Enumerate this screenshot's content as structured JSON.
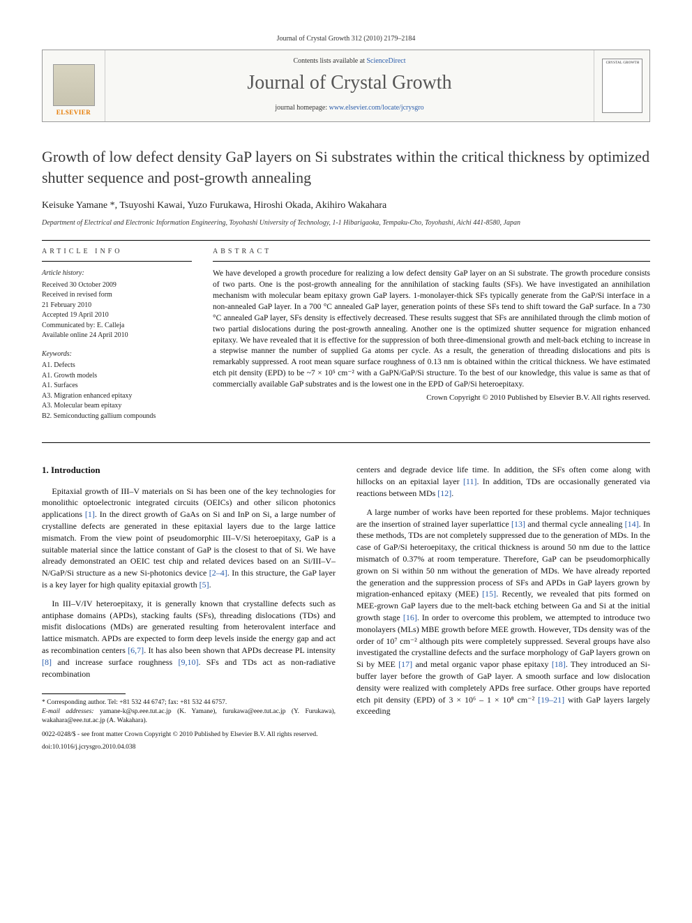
{
  "journal_header_line": "Journal of Crystal Growth 312 (2010) 2179–2184",
  "header": {
    "contents_prefix": "Contents lists available at ",
    "contents_link": "ScienceDirect",
    "journal_title": "Journal of Crystal Growth",
    "homepage_prefix": "journal homepage: ",
    "homepage_url": "www.elsevier.com/locate/jcrysgro",
    "elsevier_label": "ELSEVIER",
    "cover_label": "CRYSTAL GROWTH"
  },
  "title": "Growth of low defect density GaP layers on Si substrates within the critical thickness by optimized shutter sequence and post-growth annealing",
  "authors_html": "Keisuke Yamane *, Tsuyoshi Kawai, Yuzo Furukawa, Hiroshi Okada, Akihiro Wakahara",
  "affiliation": "Department of Electrical and Electronic Information Engineering, Toyohashi University of Technology, 1-1 Hibarigaoka, Tempaku-Cho, Toyohashi, Aichi 441-8580, Japan",
  "labels": {
    "article_info": "article info",
    "abstract": "abstract"
  },
  "history": {
    "head": "Article history:",
    "lines": [
      "Received 30 October 2009",
      "Received in revised form",
      "21 February 2010",
      "Accepted 19 April 2010",
      "Communicated by: E. Calleja",
      "Available online 24 April 2010"
    ]
  },
  "keywords": {
    "head": "Keywords:",
    "items": [
      "A1. Defects",
      "A1. Growth models",
      "A1. Surfaces",
      "A3. Migration enhanced epitaxy",
      "A3. Molecular beam epitaxy",
      "B2. Semiconducting gallium compounds"
    ]
  },
  "abstract": "We have developed a growth procedure for realizing a low defect density GaP layer on an Si substrate. The growth procedure consists of two parts. One is the post-growth annealing for the annihilation of stacking faults (SFs). We have investigated an annihilation mechanism with molecular beam epitaxy grown GaP layers. 1-monolayer-thick SFs typically generate from the GaP/Si interface in a non-annealed GaP layer. In a 700 °C annealed GaP layer, generation points of these SFs tend to shift toward the GaP surface. In a 730 °C annealed GaP layer, SFs density is effectively decreased. These results suggest that SFs are annihilated through the climb motion of two partial dislocations during the post-growth annealing. Another one is the optimized shutter sequence for migration enhanced epitaxy. We have revealed that it is effective for the suppression of both three-dimensional growth and melt-back etching to increase in a stepwise manner the number of supplied Ga atoms per cycle. As a result, the generation of threading dislocations and pits is remarkably suppressed. A root mean square surface roughness of 0.13 nm is obtained within the critical thickness. We have estimated etch pit density (EPD) to be ~7 × 10⁵ cm⁻² with a GaPN/GaP/Si structure. To the best of our knowledge, this value is same as that of commercially available GaP substrates and is the lowest one in the EPD of GaP/Si heteroepitaxy.",
  "copyright": "Crown Copyright © 2010 Published by Elsevier B.V. All rights reserved.",
  "intro_heading": "1. Introduction",
  "intro_p1": "Epitaxial growth of III–V materials on Si has been one of the key technologies for monolithic optoelectronic integrated circuits (OEICs) and other silicon photonics applications [1]. In the direct growth of GaAs on Si and InP on Si, a large number of crystalline defects are generated in these epitaxial layers due to the large lattice mismatch. From the view point of pseudomorphic III–V/Si heteroepitaxy, GaP is a suitable material since the lattice constant of GaP is the closest to that of Si. We have already demonstrated an OEIC test chip and related devices based on an Si/III–V–N/GaP/Si structure as a new Si-photonics device [2–4]. In this structure, the GaP layer is a key layer for high quality epitaxial growth [5].",
  "intro_p2": "In III–V/IV heteroepitaxy, it is generally known that crystalline defects such as antiphase domains (APDs), stacking faults (SFs), threading dislocations (TDs) and misfit dislocations (MDs) are generated resulting from heterovalent interface and lattice mismatch. APDs are expected to form deep levels inside the energy gap and act as recombination centers [6,7]. It has also been shown that APDs decrease PL intensity [8] and increase surface roughness [9,10]. SFs and TDs act as non-radiative recombination",
  "intro_p3": "centers and degrade device life time. In addition, the SFs often come along with hillocks on an epitaxial layer [11]. In addition, TDs are occasionally generated via reactions between MDs [12].",
  "intro_p4": "A large number of works have been reported for these problems. Major techniques are the insertion of strained layer superlattice [13] and thermal cycle annealing [14]. In these methods, TDs are not completely suppressed due to the generation of MDs. In the case of GaP/Si heteroepitaxy, the critical thickness is around 50 nm due to the lattice mismatch of 0.37% at room temperature. Therefore, GaP can be pseudomorphically grown on Si within 50 nm without the generation of MDs. We have already reported the generation and the suppression process of SFs and APDs in GaP layers grown by migration-enhanced epitaxy (MEE) [15]. Recently, we revealed that pits formed on MEE-grown GaP layers due to the melt-back etching between Ga and Si at the initial growth stage [16]. In order to overcome this problem, we attempted to introduce two monolayers (MLs) MBE growth before MEE growth. However, TDs density was of the order of 10⁷ cm⁻² although pits were completely suppressed. Several groups have also investigated the crystalline defects and the surface morphology of GaP layers grown on Si by MEE [17] and metal organic vapor phase epitaxy [18]. They introduced an Si-buffer layer before the growth of GaP layer. A smooth surface and low dislocation density were realized with completely APDs free surface. Other groups have reported etch pit density (EPD) of 3 × 10⁶ – 1 × 10⁸ cm⁻² [19–21] with GaP layers largely exceeding",
  "footnotes": {
    "corr": "* Corresponding author. Tel: +81 532 44 6747; fax: +81 532 44 6757.",
    "emails_label": "E-mail addresses:",
    "emails": "yamane-k@sp.eee.tut.ac.jp (K. Yamane), furukawa@eee.tut.ac.jp (Y. Furukawa), wakahara@eee.tut.ac.jp (A. Wakahara).",
    "front_matter": "0022-0248/$ - see front matter Crown Copyright © 2010 Published by Elsevier B.V. All rights reserved.",
    "doi": "doi:10.1016/j.jcrysgro.2010.04.038"
  },
  "refs": [
    "[1]",
    "[2–4]",
    "[5]",
    "[6,7]",
    "[8]",
    "[9,10]",
    "[11]",
    "[12]",
    "[13]",
    "[14]",
    "[15]",
    "[16]",
    "[17]",
    "[18]",
    "[19–21]"
  ]
}
